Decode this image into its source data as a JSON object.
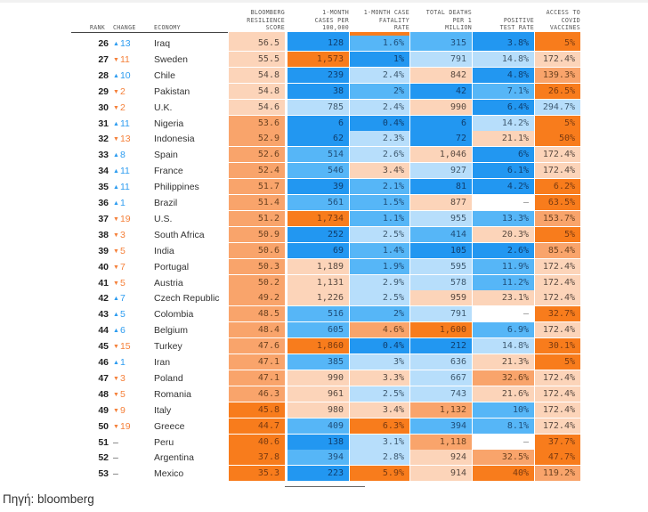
{
  "headers": {
    "rank": "RANK",
    "change": "CHANGE",
    "economy": "ECONOMY",
    "score": "BLOOMBERG\nRESILIENCE\nSCORE",
    "cases": "1-MONTH\nCASES PER\n100,000",
    "cfr": "1-MONTH CASE\nFATALITY\nRATE",
    "deaths": "TOTAL DEATHS\nPER 1\nMILLION",
    "positive": "POSITIVE\nTEST RATE",
    "vaccines": "ACCESS TO\nCOVID\nVACCINES"
  },
  "colors": {
    "orange_dark": "#f87c1c",
    "orange_mid": "#f9a46b",
    "orange_light": "#fcd4b9",
    "blue_light": "#b7defb",
    "blue_mid": "#56b6f7",
    "blue_dark": "#2297f1",
    "change_up": "#2d9cf0",
    "change_down": "#f5803a"
  },
  "rows": [
    {
      "rank": "26",
      "dir": "up",
      "change": "13",
      "economy": "Iraq",
      "score": "56.5",
      "score_lvl": "o1",
      "cases": "128",
      "cases_lvl": "b3",
      "cfr": "1.6%",
      "cfr_lvl": "b2",
      "deaths": "315",
      "deaths_lvl": "b2",
      "positive": "3.8%",
      "positive_lvl": "b3",
      "vaccines": "5%",
      "vaccines_lvl": "o3"
    },
    {
      "rank": "27",
      "dir": "down",
      "change": "11",
      "economy": "Sweden",
      "score": "55.5",
      "score_lvl": "o1",
      "cases": "1,573",
      "cases_lvl": "o3",
      "cfr": "1%",
      "cfr_lvl": "b3",
      "deaths": "791",
      "deaths_lvl": "b1",
      "positive": "14.8%",
      "positive_lvl": "b1",
      "vaccines": "172.4%",
      "vaccines_lvl": "o1"
    },
    {
      "rank": "28",
      "dir": "up",
      "change": "10",
      "economy": "Chile",
      "score": "54.8",
      "score_lvl": "o1",
      "cases": "239",
      "cases_lvl": "b3",
      "cfr": "2.4%",
      "cfr_lvl": "b1",
      "deaths": "842",
      "deaths_lvl": "o1",
      "positive": "4.8%",
      "positive_lvl": "b3",
      "vaccines": "139.3%",
      "vaccines_lvl": "o2"
    },
    {
      "rank": "29",
      "dir": "down",
      "change": "2",
      "economy": "Pakistan",
      "score": "54.8",
      "score_lvl": "o1",
      "cases": "38",
      "cases_lvl": "b3",
      "cfr": "2%",
      "cfr_lvl": "b2",
      "deaths": "42",
      "deaths_lvl": "b3",
      "positive": "7.1%",
      "positive_lvl": "b2",
      "vaccines": "26.5%",
      "vaccines_lvl": "o3"
    },
    {
      "rank": "30",
      "dir": "down",
      "change": "2",
      "economy": "U.K.",
      "score": "54.6",
      "score_lvl": "o1",
      "cases": "785",
      "cases_lvl": "b1",
      "cfr": "2.4%",
      "cfr_lvl": "b1",
      "deaths": "990",
      "deaths_lvl": "o1",
      "positive": "6.4%",
      "positive_lvl": "b3",
      "vaccines": "294.7%",
      "vaccines_lvl": "b1"
    },
    {
      "rank": "31",
      "dir": "up",
      "change": "11",
      "economy": "Nigeria",
      "score": "53.6",
      "score_lvl": "o2",
      "cases": "6",
      "cases_lvl": "b3",
      "cfr": "0.4%",
      "cfr_lvl": "b3",
      "deaths": "6",
      "deaths_lvl": "b3",
      "positive": "14.2%",
      "positive_lvl": "b1",
      "vaccines": "5%",
      "vaccines_lvl": "o3"
    },
    {
      "rank": "32",
      "dir": "down",
      "change": "13",
      "economy": "Indonesia",
      "score": "52.9",
      "score_lvl": "o2",
      "cases": "62",
      "cases_lvl": "b3",
      "cfr": "2.3%",
      "cfr_lvl": "b1",
      "deaths": "72",
      "deaths_lvl": "b3",
      "positive": "21.1%",
      "positive_lvl": "o1",
      "vaccines": "50%",
      "vaccines_lvl": "o3"
    },
    {
      "rank": "33",
      "dir": "up",
      "change": "8",
      "economy": "Spain",
      "score": "52.6",
      "score_lvl": "o2",
      "cases": "514",
      "cases_lvl": "b2",
      "cfr": "2.6%",
      "cfr_lvl": "b1",
      "deaths": "1,046",
      "deaths_lvl": "o1",
      "positive": "6%",
      "positive_lvl": "b3",
      "vaccines": "172.4%",
      "vaccines_lvl": "o1"
    },
    {
      "rank": "34",
      "dir": "up",
      "change": "11",
      "economy": "France",
      "score": "52.4",
      "score_lvl": "o2",
      "cases": "546",
      "cases_lvl": "b2",
      "cfr": "3.4%",
      "cfr_lvl": "o1",
      "deaths": "927",
      "deaths_lvl": "b1",
      "positive": "6.1%",
      "positive_lvl": "b3",
      "vaccines": "172.4%",
      "vaccines_lvl": "o1"
    },
    {
      "rank": "35",
      "dir": "up",
      "change": "11",
      "economy": "Philippines",
      "score": "51.7",
      "score_lvl": "o2",
      "cases": "39",
      "cases_lvl": "b3",
      "cfr": "2.1%",
      "cfr_lvl": "b2",
      "deaths": "81",
      "deaths_lvl": "b3",
      "positive": "4.2%",
      "positive_lvl": "b3",
      "vaccines": "6.2%",
      "vaccines_lvl": "o3"
    },
    {
      "rank": "36",
      "dir": "up",
      "change": "1",
      "economy": "Brazil",
      "score": "51.4",
      "score_lvl": "o2",
      "cases": "561",
      "cases_lvl": "b2",
      "cfr": "1.5%",
      "cfr_lvl": "b2",
      "deaths": "877",
      "deaths_lvl": "o1",
      "positive": "–",
      "positive_lvl": "na",
      "vaccines": "63.5%",
      "vaccines_lvl": "o3"
    },
    {
      "rank": "37",
      "dir": "down",
      "change": "19",
      "economy": "U.S.",
      "score": "51.2",
      "score_lvl": "o2",
      "cases": "1,734",
      "cases_lvl": "o3",
      "cfr": "1.1%",
      "cfr_lvl": "b2",
      "deaths": "955",
      "deaths_lvl": "b1",
      "positive": "13.3%",
      "positive_lvl": "b2",
      "vaccines": "153.7%",
      "vaccines_lvl": "o2"
    },
    {
      "rank": "38",
      "dir": "down",
      "change": "3",
      "economy": "South Africa",
      "score": "50.9",
      "score_lvl": "o2",
      "cases": "252",
      "cases_lvl": "b3",
      "cfr": "2.5%",
      "cfr_lvl": "b1",
      "deaths": "414",
      "deaths_lvl": "b2",
      "positive": "20.3%",
      "positive_lvl": "o1",
      "vaccines": "5%",
      "vaccines_lvl": "o3"
    },
    {
      "rank": "39",
      "dir": "down",
      "change": "5",
      "economy": "India",
      "score": "50.6",
      "score_lvl": "o2",
      "cases": "69",
      "cases_lvl": "b3",
      "cfr": "1.4%",
      "cfr_lvl": "b2",
      "deaths": "105",
      "deaths_lvl": "b3",
      "positive": "2.6%",
      "positive_lvl": "b3",
      "vaccines": "85.4%",
      "vaccines_lvl": "o2"
    },
    {
      "rank": "40",
      "dir": "down",
      "change": "7",
      "economy": "Portugal",
      "score": "50.3",
      "score_lvl": "o2",
      "cases": "1,189",
      "cases_lvl": "o1",
      "cfr": "1.9%",
      "cfr_lvl": "b2",
      "deaths": "595",
      "deaths_lvl": "b1",
      "positive": "11.9%",
      "positive_lvl": "b2",
      "vaccines": "172.4%",
      "vaccines_lvl": "o1"
    },
    {
      "rank": "41",
      "dir": "down",
      "change": "5",
      "economy": "Austria",
      "score": "50.2",
      "score_lvl": "o2",
      "cases": "1,131",
      "cases_lvl": "o1",
      "cfr": "2.9%",
      "cfr_lvl": "b1",
      "deaths": "578",
      "deaths_lvl": "b1",
      "positive": "11.2%",
      "positive_lvl": "b2",
      "vaccines": "172.4%",
      "vaccines_lvl": "o1"
    },
    {
      "rank": "42",
      "dir": "up",
      "change": "7",
      "economy": "Czech Republic",
      "score": "49.2",
      "score_lvl": "o2",
      "cases": "1,226",
      "cases_lvl": "o1",
      "cfr": "2.5%",
      "cfr_lvl": "b1",
      "deaths": "959",
      "deaths_lvl": "o1",
      "positive": "23.1%",
      "positive_lvl": "o1",
      "vaccines": "172.4%",
      "vaccines_lvl": "o1"
    },
    {
      "rank": "43",
      "dir": "up",
      "change": "5",
      "economy": "Colombia",
      "score": "48.5",
      "score_lvl": "o2",
      "cases": "516",
      "cases_lvl": "b2",
      "cfr": "2%",
      "cfr_lvl": "b2",
      "deaths": "791",
      "deaths_lvl": "b1",
      "positive": "–",
      "positive_lvl": "na",
      "vaccines": "32.7%",
      "vaccines_lvl": "o3"
    },
    {
      "rank": "44",
      "dir": "up",
      "change": "6",
      "economy": "Belgium",
      "score": "48.4",
      "score_lvl": "o2",
      "cases": "605",
      "cases_lvl": "b2",
      "cfr": "4.6%",
      "cfr_lvl": "o2",
      "deaths": "1,600",
      "deaths_lvl": "o3",
      "positive": "6.9%",
      "positive_lvl": "b2",
      "vaccines": "172.4%",
      "vaccines_lvl": "o1"
    },
    {
      "rank": "45",
      "dir": "down",
      "change": "15",
      "economy": "Turkey",
      "score": "47.6",
      "score_lvl": "o2",
      "cases": "1,860",
      "cases_lvl": "o3",
      "cfr": "0.4%",
      "cfr_lvl": "b3",
      "deaths": "212",
      "deaths_lvl": "b3",
      "positive": "14.8%",
      "positive_lvl": "b1",
      "vaccines": "30.1%",
      "vaccines_lvl": "o3"
    },
    {
      "rank": "46",
      "dir": "up",
      "change": "1",
      "economy": "Iran",
      "score": "47.1",
      "score_lvl": "o2",
      "cases": "385",
      "cases_lvl": "b2",
      "cfr": "3%",
      "cfr_lvl": "b1",
      "deaths": "636",
      "deaths_lvl": "b1",
      "positive": "21.3%",
      "positive_lvl": "o1",
      "vaccines": "5%",
      "vaccines_lvl": "o3"
    },
    {
      "rank": "47",
      "dir": "down",
      "change": "3",
      "economy": "Poland",
      "score": "47.1",
      "score_lvl": "o2",
      "cases": "990",
      "cases_lvl": "o1",
      "cfr": "3.3%",
      "cfr_lvl": "o1",
      "deaths": "667",
      "deaths_lvl": "b1",
      "positive": "32.6%",
      "positive_lvl": "o2",
      "vaccines": "172.4%",
      "vaccines_lvl": "o1"
    },
    {
      "rank": "48",
      "dir": "down",
      "change": "5",
      "economy": "Romania",
      "score": "46.3",
      "score_lvl": "o2",
      "cases": "961",
      "cases_lvl": "o1",
      "cfr": "2.5%",
      "cfr_lvl": "b1",
      "deaths": "743",
      "deaths_lvl": "b1",
      "positive": "21.6%",
      "positive_lvl": "o1",
      "vaccines": "172.4%",
      "vaccines_lvl": "o1"
    },
    {
      "rank": "49",
      "dir": "down",
      "change": "9",
      "economy": "Italy",
      "score": "45.8",
      "score_lvl": "o3",
      "cases": "980",
      "cases_lvl": "o1",
      "cfr": "3.4%",
      "cfr_lvl": "o1",
      "deaths": "1,132",
      "deaths_lvl": "o2",
      "positive": "10%",
      "positive_lvl": "b2",
      "vaccines": "172.4%",
      "vaccines_lvl": "o1"
    },
    {
      "rank": "50",
      "dir": "down",
      "change": "19",
      "economy": "Greece",
      "score": "44.7",
      "score_lvl": "o3",
      "cases": "409",
      "cases_lvl": "b2",
      "cfr": "6.3%",
      "cfr_lvl": "o3",
      "deaths": "394",
      "deaths_lvl": "b2",
      "positive": "8.1%",
      "positive_lvl": "b2",
      "vaccines": "172.4%",
      "vaccines_lvl": "o1"
    },
    {
      "rank": "51",
      "dir": "none",
      "change": "–",
      "economy": "Peru",
      "score": "40.6",
      "score_lvl": "o3",
      "cases": "138",
      "cases_lvl": "b3",
      "cfr": "3.1%",
      "cfr_lvl": "b1",
      "deaths": "1,118",
      "deaths_lvl": "o2",
      "positive": "–",
      "positive_lvl": "na",
      "vaccines": "37.7%",
      "vaccines_lvl": "o3"
    },
    {
      "rank": "52",
      "dir": "none",
      "change": "–",
      "economy": "Argentina",
      "score": "37.8",
      "score_lvl": "o3",
      "cases": "394",
      "cases_lvl": "b2",
      "cfr": "2.8%",
      "cfr_lvl": "b1",
      "deaths": "924",
      "deaths_lvl": "o1",
      "positive": "32.5%",
      "positive_lvl": "o2",
      "vaccines": "47.7%",
      "vaccines_lvl": "o3"
    },
    {
      "rank": "53",
      "dir": "none",
      "change": "–",
      "economy": "Mexico",
      "score": "35.3",
      "score_lvl": "o3",
      "cases": "223",
      "cases_lvl": "b3",
      "cfr": "5.9%",
      "cfr_lvl": "o3",
      "deaths": "914",
      "deaths_lvl": "o1",
      "positive": "40%",
      "positive_lvl": "o3",
      "vaccines": "119.2%",
      "vaccines_lvl": "o2"
    }
  ],
  "footer": {
    "source": "Πηγή: bloomberg"
  }
}
